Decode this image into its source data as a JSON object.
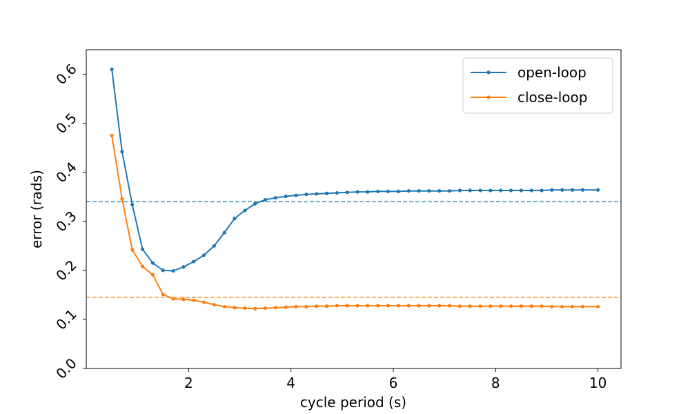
{
  "chart_data": {
    "type": "line",
    "title": "",
    "xlabel": "cycle period (s)",
    "ylabel": "error (rads)",
    "xlim": [
      0.0,
      10.45
    ],
    "ylim": [
      0.0,
      0.65
    ],
    "xticks": [
      2,
      4,
      6,
      8,
      10
    ],
    "yticks": [
      0.0,
      0.1,
      0.2,
      0.3,
      0.4,
      0.5,
      0.6
    ],
    "xtick_labels": [
      "2",
      "4",
      "6",
      "8",
      "10"
    ],
    "ytick_labels": [
      "0.0",
      "0.1",
      "0.2",
      "0.3",
      "0.4",
      "0.5",
      "0.6"
    ],
    "grid": false,
    "legend_position": "top-right",
    "x": [
      0.5,
      0.7,
      0.9,
      1.1,
      1.3,
      1.5,
      1.7,
      1.9,
      2.1,
      2.3,
      2.5,
      2.7,
      2.9,
      3.1,
      3.3,
      3.5,
      3.7,
      3.9,
      4.1,
      4.3,
      4.5,
      4.7,
      4.9,
      5.1,
      5.3,
      5.5,
      5.7,
      5.9,
      6.1,
      6.3,
      6.5,
      6.7,
      6.9,
      7.1,
      7.3,
      7.5,
      7.7,
      7.9,
      8.1,
      8.3,
      8.5,
      8.7,
      8.9,
      9.1,
      9.3,
      9.5,
      9.7,
      10.0
    ],
    "series": [
      {
        "name": "open-loop",
        "color": "#1f77b4",
        "values": [
          0.61,
          0.442,
          0.334,
          0.243,
          0.215,
          0.2,
          0.199,
          0.207,
          0.218,
          0.231,
          0.25,
          0.277,
          0.306,
          0.322,
          0.336,
          0.344,
          0.348,
          0.351,
          0.353,
          0.355,
          0.356,
          0.357,
          0.358,
          0.359,
          0.36,
          0.36,
          0.361,
          0.361,
          0.361,
          0.362,
          0.362,
          0.362,
          0.362,
          0.362,
          0.363,
          0.363,
          0.363,
          0.363,
          0.363,
          0.363,
          0.363,
          0.363,
          0.363,
          0.364,
          0.364,
          0.364,
          0.364,
          0.364
        ]
      },
      {
        "name": "close-loop",
        "color": "#ff7f0e",
        "values": [
          0.475,
          0.346,
          0.242,
          0.208,
          0.191,
          0.151,
          0.142,
          0.141,
          0.139,
          0.135,
          0.13,
          0.126,
          0.124,
          0.123,
          0.122,
          0.123,
          0.124,
          0.125,
          0.126,
          0.126,
          0.127,
          0.127,
          0.128,
          0.128,
          0.128,
          0.128,
          0.128,
          0.128,
          0.128,
          0.128,
          0.128,
          0.128,
          0.128,
          0.128,
          0.127,
          0.127,
          0.127,
          0.127,
          0.127,
          0.127,
          0.127,
          0.127,
          0.127,
          0.126,
          0.126,
          0.126,
          0.126,
          0.126
        ]
      }
    ],
    "reference_lines": [
      {
        "value": 0.34,
        "color": "#1f77b4",
        "style": "dashed"
      },
      {
        "value": 0.145,
        "color": "#ff7f0e",
        "style": "dashed"
      }
    ]
  }
}
